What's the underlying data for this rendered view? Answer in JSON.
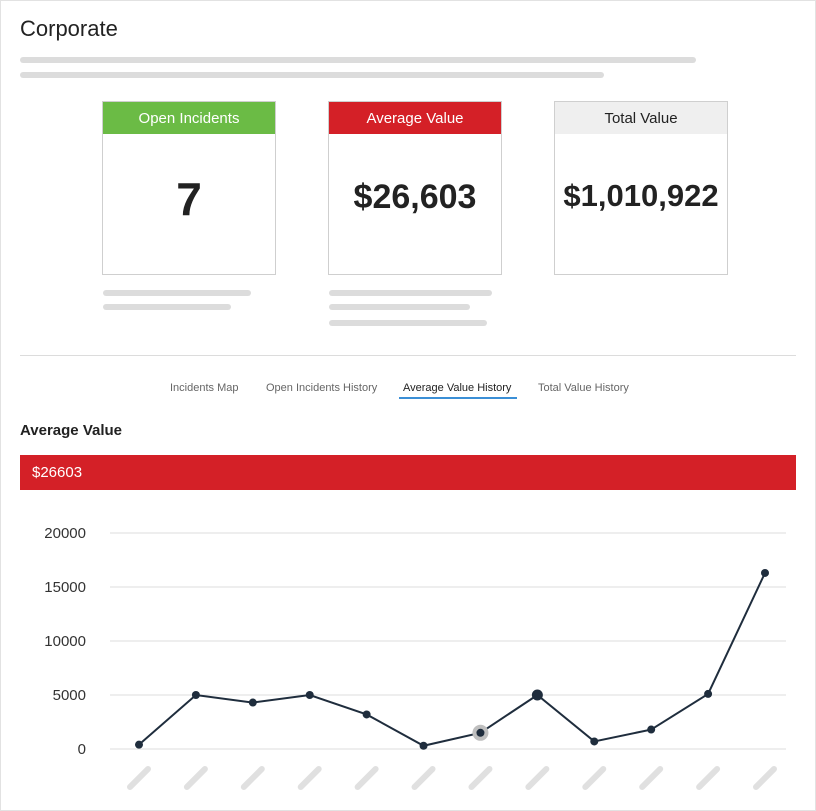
{
  "page": {
    "title": "Corporate"
  },
  "cards": [
    {
      "label": "Open Incidents",
      "value": "7",
      "header_color": "#6bbb45"
    },
    {
      "label": "Average Value",
      "value": "$26,603",
      "header_color": "#d42027"
    },
    {
      "label": "Total Value",
      "value": "$1,010,922",
      "header_color": "#efefef"
    }
  ],
  "tabs": [
    {
      "label": "Incidents Map",
      "active": false
    },
    {
      "label": "Open Incidents History",
      "active": false
    },
    {
      "label": "Average Value History",
      "active": true
    },
    {
      "label": "Total Value History",
      "active": false
    }
  ],
  "section": {
    "title": "Average Value",
    "value_banner": "$26603"
  },
  "colors": {
    "accent_blue": "#3b8fd6",
    "line": "#1f2d3d",
    "grid": "#dddddd"
  },
  "chart_data": {
    "type": "line",
    "title": "",
    "xlabel": "",
    "ylabel": "",
    "ylim": [
      0,
      20000
    ],
    "yticks": [
      "0",
      "5000",
      "10000",
      "15000",
      "20000"
    ],
    "x_tick_labels_obscured": true,
    "grid": true,
    "series": [
      {
        "values": [
          400,
          5000,
          4300,
          5000,
          3200,
          300,
          1500,
          5000,
          700,
          1800,
          5100,
          16300
        ]
      }
    ],
    "highlighted_points": [
      6,
      7
    ]
  }
}
